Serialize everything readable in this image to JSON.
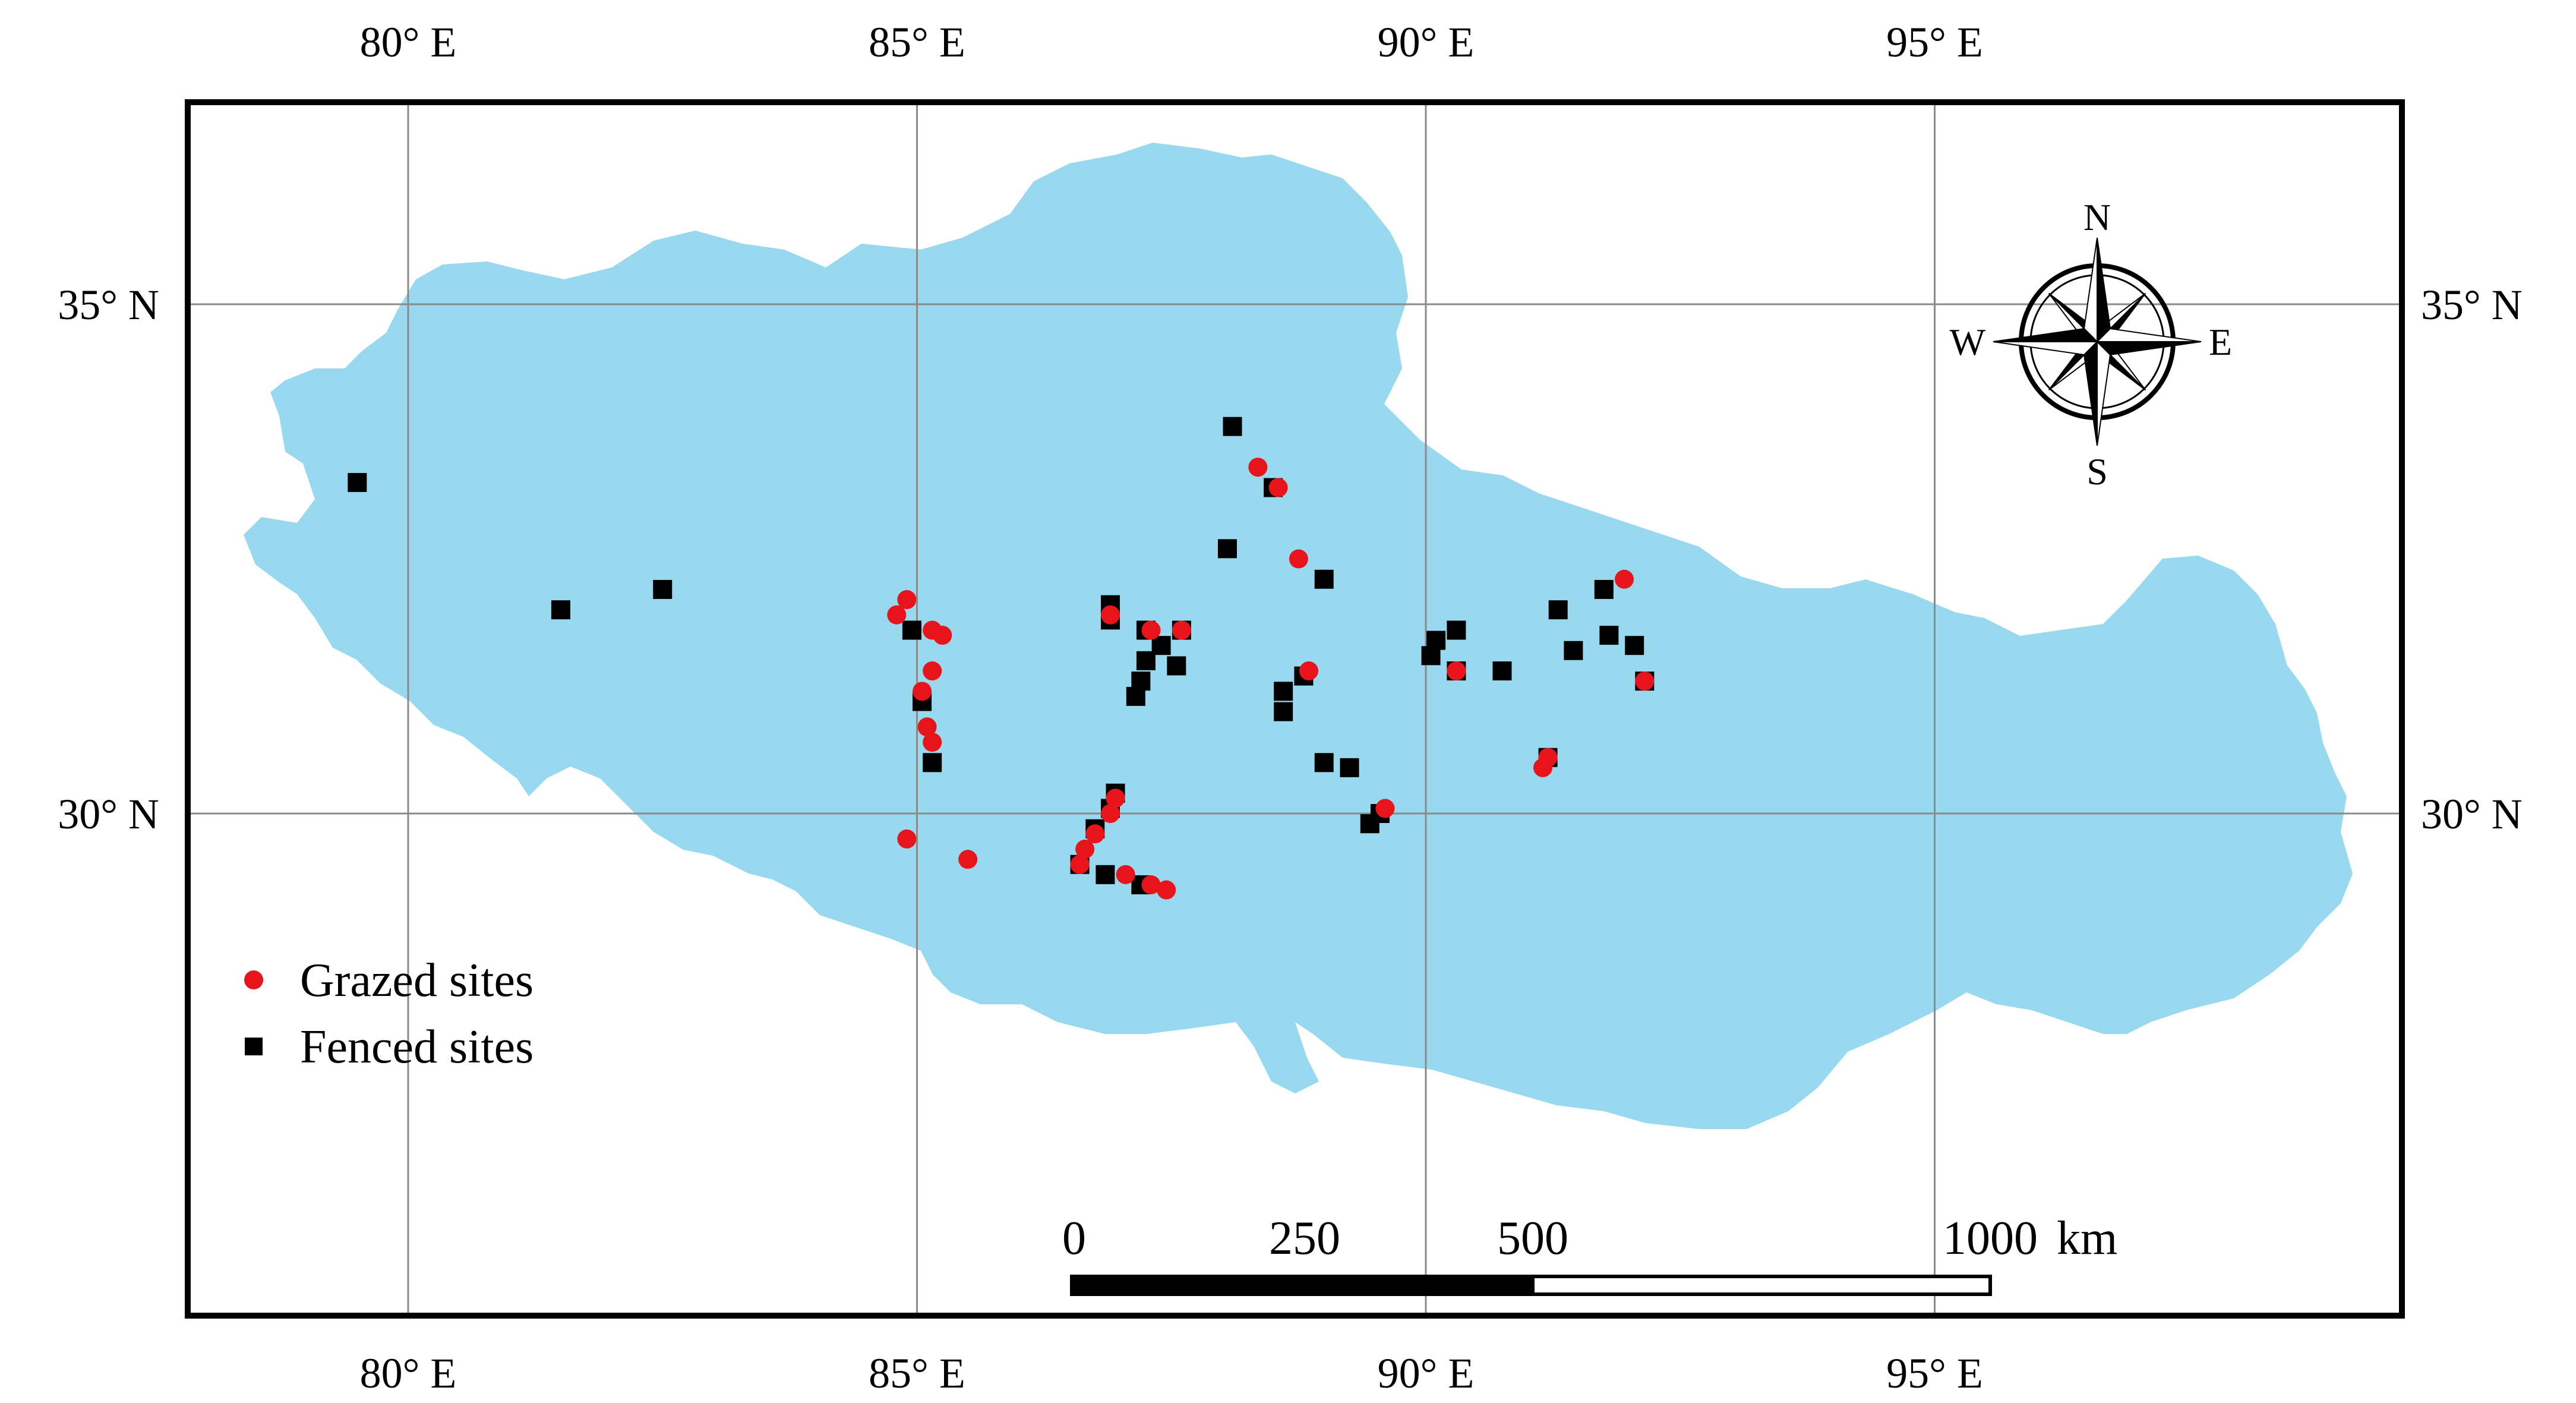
{
  "colors": {
    "region_fill": "#98d9f0",
    "frame": "#000000",
    "grid": "#8a8a8a",
    "grazed": "#e8141c",
    "fenced": "#000000"
  },
  "axes": {
    "lon_labels": [
      "80° E",
      "85° E",
      "90° E",
      "95° E"
    ],
    "lat_labels_left": [
      "35° N",
      "30° N"
    ],
    "lat_labels_right": [
      "35° N",
      "30° N"
    ],
    "lon_values": [
      80,
      85,
      90,
      95
    ],
    "lat_values": [
      35,
      30
    ],
    "lon_range": [
      77.8,
      99.6
    ],
    "lat_range": [
      25.2,
      37.0
    ]
  },
  "compass": {
    "north": "N",
    "south": "S",
    "east": "E",
    "west": "W"
  },
  "legend": {
    "grazed_label": "Grazed sites",
    "fenced_label": "Fenced sites"
  },
  "scale_bar": {
    "ticks": [
      "0",
      "250",
      "500",
      "1000"
    ],
    "unit": "km"
  },
  "sites": {
    "fenced": [
      [
        79.5,
        33.25
      ],
      [
        81.5,
        32.0
      ],
      [
        82.5,
        32.2
      ],
      [
        84.95,
        31.8
      ],
      [
        85.05,
        31.1
      ],
      [
        85.15,
        30.5
      ],
      [
        86.9,
        32.05
      ],
      [
        86.9,
        31.9
      ],
      [
        87.25,
        31.8
      ],
      [
        87.4,
        31.65
      ],
      [
        87.25,
        31.5
      ],
      [
        87.2,
        31.3
      ],
      [
        87.15,
        31.15
      ],
      [
        87.55,
        31.45
      ],
      [
        87.6,
        31.8
      ],
      [
        86.95,
        30.2
      ],
      [
        86.9,
        30.05
      ],
      [
        86.75,
        29.85
      ],
      [
        86.6,
        29.5
      ],
      [
        86.85,
        29.4
      ],
      [
        87.2,
        29.3
      ],
      [
        88.1,
        33.8
      ],
      [
        88.5,
        33.2
      ],
      [
        88.05,
        32.6
      ],
      [
        89.0,
        32.3
      ],
      [
        88.8,
        31.35
      ],
      [
        88.6,
        31.2
      ],
      [
        88.6,
        31.0
      ],
      [
        89.0,
        30.5
      ],
      [
        89.25,
        30.45
      ],
      [
        89.55,
        30.0
      ],
      [
        89.45,
        29.9
      ],
      [
        90.05,
        31.55
      ],
      [
        90.1,
        31.7
      ],
      [
        90.3,
        31.8
      ],
      [
        90.3,
        31.4
      ],
      [
        90.75,
        31.4
      ],
      [
        91.3,
        32.0
      ],
      [
        91.75,
        32.2
      ],
      [
        91.2,
        30.55
      ],
      [
        91.45,
        31.6
      ],
      [
        91.8,
        31.75
      ],
      [
        92.05,
        31.65
      ],
      [
        92.15,
        31.3
      ]
    ],
    "grazed": [
      [
        84.9,
        32.1
      ],
      [
        84.8,
        31.95
      ],
      [
        85.15,
        31.8
      ],
      [
        85.25,
        31.75
      ],
      [
        85.15,
        31.4
      ],
      [
        85.05,
        31.2
      ],
      [
        85.1,
        30.85
      ],
      [
        85.15,
        30.7
      ],
      [
        84.9,
        29.75
      ],
      [
        85.5,
        29.55
      ],
      [
        86.9,
        31.95
      ],
      [
        87.3,
        31.8
      ],
      [
        87.6,
        31.8
      ],
      [
        86.95,
        30.15
      ],
      [
        86.9,
        30.0
      ],
      [
        86.75,
        29.8
      ],
      [
        86.65,
        29.65
      ],
      [
        86.6,
        29.5
      ],
      [
        87.05,
        29.4
      ],
      [
        87.3,
        29.3
      ],
      [
        87.45,
        29.25
      ],
      [
        88.35,
        33.4
      ],
      [
        88.75,
        32.5
      ],
      [
        88.85,
        31.4
      ],
      [
        88.55,
        33.2
      ],
      [
        91.95,
        32.3
      ],
      [
        91.15,
        30.45
      ],
      [
        91.2,
        30.55
      ],
      [
        90.3,
        31.4
      ],
      [
        92.15,
        31.3
      ],
      [
        89.6,
        30.05
      ]
    ]
  }
}
